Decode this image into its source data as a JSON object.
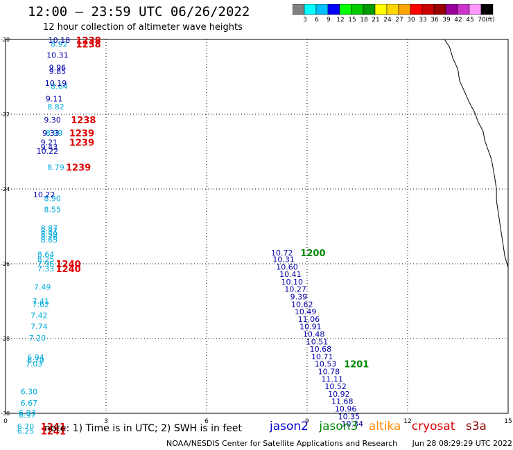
{
  "header": {
    "title": "12:00 – 23:59 UTC 06/26/2022",
    "subtitle": "12 hour collection of altimeter wave heights"
  },
  "colorbar": {
    "colors": [
      "#808080",
      "#00ffff",
      "#00bfff",
      "#0000ff",
      "#00ff00",
      "#00cc00",
      "#009900",
      "#ffff00",
      "#ffd700",
      "#ffa500",
      "#ff0000",
      "#cc0000",
      "#990000",
      "#990099",
      "#cc33cc",
      "#ff99ff",
      "#000000"
    ],
    "labels": [
      "3",
      "6",
      "9",
      "12",
      "15",
      "18",
      "21",
      "24",
      "27",
      "30",
      "33",
      "36",
      "39",
      "42",
      "45",
      "70"
    ],
    "unit": "(ft)"
  },
  "footer": {
    "note": "note:  1) Time is in UTC; 2) SWH is in feet",
    "credit": "NOAA/NESDIS Center for Satellite Applications and Research",
    "timestamp": "Jun 28 08:29:29 UTC 2022"
  },
  "legend": [
    {
      "name": "jason2",
      "color": "#0000cc"
    },
    {
      "name": "jason3",
      "color": "#008800"
    },
    {
      "name": "altika",
      "color": "#ff8800"
    },
    {
      "name": "cryosat",
      "color": "#dd0000"
    },
    {
      "name": "s3a",
      "color": "#880000"
    }
  ],
  "chart_data": {
    "type": "scatter",
    "xlim": [
      0,
      15
    ],
    "ylim": [
      -30,
      -20
    ],
    "x_ticks": [
      "0",
      "3",
      "6",
      "9",
      "12",
      "15"
    ],
    "y_ticks": [
      "-20",
      "-22",
      "-24",
      "-26",
      "-28",
      "-30"
    ],
    "grid": true,
    "series": [
      {
        "color": "#00aadd",
        "points": [
          {
            "x": 1.6,
            "y": -20.12,
            "label": "8.92"
          },
          {
            "x": 1.6,
            "y": -21.25,
            "label": "8.64"
          },
          {
            "x": 1.5,
            "y": -21.8,
            "label": "8.82"
          },
          {
            "x": 1.45,
            "y": -22.5,
            "label": "8.99"
          },
          {
            "x": 1.5,
            "y": -23.42,
            "label": "8.79"
          },
          {
            "x": 1.4,
            "y": -24.25,
            "label": "8.90"
          },
          {
            "x": 1.4,
            "y": -24.55,
            "label": "8.55"
          },
          {
            "x": 1.3,
            "y": -25.05,
            "label": "8.87"
          },
          {
            "x": 1.3,
            "y": -25.12,
            "label": "8.57"
          },
          {
            "x": 1.3,
            "y": -25.2,
            "label": "8.59"
          },
          {
            "x": 1.3,
            "y": -25.28,
            "label": "8.76"
          },
          {
            "x": 1.3,
            "y": -25.36,
            "label": "8.65"
          },
          {
            "x": 1.2,
            "y": -25.75,
            "label": "8.64"
          },
          {
            "x": 1.2,
            "y": -25.88,
            "label": "8.25"
          },
          {
            "x": 1.2,
            "y": -26.0,
            "label": "7.96"
          },
          {
            "x": 1.2,
            "y": -26.13,
            "label": "7.33"
          },
          {
            "x": 1.1,
            "y": -26.62,
            "label": "7.49"
          },
          {
            "x": 1.05,
            "y": -27.0,
            "label": "7.41"
          },
          {
            "x": 1.05,
            "y": -27.08,
            "label": "7.62"
          },
          {
            "x": 1.0,
            "y": -27.38,
            "label": "7.42"
          },
          {
            "x": 1.0,
            "y": -27.68,
            "label": "7.74"
          },
          {
            "x": 0.95,
            "y": -27.98,
            "label": "7.20"
          },
          {
            "x": 0.9,
            "y": -28.5,
            "label": "6.94"
          },
          {
            "x": 0.9,
            "y": -28.58,
            "label": "6.79"
          },
          {
            "x": 0.85,
            "y": -28.68,
            "label": "7.03"
          },
          {
            "x": 0.7,
            "y": -29.42,
            "label": "6.30"
          },
          {
            "x": 0.7,
            "y": -29.72,
            "label": "6.67"
          },
          {
            "x": 0.65,
            "y": -29.98,
            "label": "6.93"
          },
          {
            "x": 0.65,
            "y": -30.05,
            "label": "6.97"
          },
          {
            "x": 0.6,
            "y": -30.35,
            "label": "6.70"
          },
          {
            "x": 0.6,
            "y": -30.47,
            "label": "6.25"
          }
        ]
      },
      {
        "color": "#0000aa",
        "points": [
          {
            "x": 1.6,
            "y": -20.02,
            "label": "10.18"
          },
          {
            "x": 1.55,
            "y": -20.42,
            "label": "10.31"
          },
          {
            "x": 1.55,
            "y": -20.75,
            "label": "9.96"
          },
          {
            "x": 1.55,
            "y": -20.85,
            "label": "9.85"
          },
          {
            "x": 1.5,
            "y": -21.17,
            "label": "10.19"
          },
          {
            "x": 1.45,
            "y": -21.58,
            "label": "9.11"
          },
          {
            "x": 1.4,
            "y": -22.15,
            "label": "9.30"
          },
          {
            "x": 1.35,
            "y": -22.5,
            "label": "9.33"
          },
          {
            "x": 1.3,
            "y": -22.75,
            "label": "9.21"
          },
          {
            "x": 1.3,
            "y": -22.88,
            "label": "9.43"
          },
          {
            "x": 1.25,
            "y": -22.98,
            "label": "10.22"
          },
          {
            "x": 1.15,
            "y": -24.15,
            "label": "10.22"
          },
          {
            "x": 8.25,
            "y": -25.7,
            "label": "10.72"
          },
          {
            "x": 8.3,
            "y": -25.88,
            "label": "10.31"
          },
          {
            "x": 8.4,
            "y": -26.08,
            "label": "10.60"
          },
          {
            "x": 8.5,
            "y": -26.28,
            "label": "10.41"
          },
          {
            "x": 8.55,
            "y": -26.48,
            "label": "10.10"
          },
          {
            "x": 8.65,
            "y": -26.68,
            "label": "10.27"
          },
          {
            "x": 8.75,
            "y": -26.88,
            "label": "9.39"
          },
          {
            "x": 8.85,
            "y": -27.08,
            "label": "10.62"
          },
          {
            "x": 8.95,
            "y": -27.28,
            "label": "10.49"
          },
          {
            "x": 9.05,
            "y": -27.48,
            "label": "11.06"
          },
          {
            "x": 9.1,
            "y": -27.68,
            "label": "10.91"
          },
          {
            "x": 9.2,
            "y": -27.88,
            "label": "10.48"
          },
          {
            "x": 9.3,
            "y": -28.08,
            "label": "10.51"
          },
          {
            "x": 9.4,
            "y": -28.28,
            "label": "10.68"
          },
          {
            "x": 9.45,
            "y": -28.48,
            "label": "10.71"
          },
          {
            "x": 9.55,
            "y": -28.68,
            "label": "10.53"
          },
          {
            "x": 9.65,
            "y": -28.88,
            "label": "10.78"
          },
          {
            "x": 9.75,
            "y": -29.08,
            "label": "11.11"
          },
          {
            "x": 9.85,
            "y": -29.28,
            "label": "10.52"
          },
          {
            "x": 9.95,
            "y": -29.48,
            "label": "10.92"
          },
          {
            "x": 10.05,
            "y": -29.68,
            "label": "11.68"
          },
          {
            "x": 10.15,
            "y": -29.88,
            "label": "10.96"
          },
          {
            "x": 10.25,
            "y": -30.08,
            "label": "10.35"
          },
          {
            "x": 10.35,
            "y": -30.28,
            "label": "10.34"
          }
        ]
      }
    ],
    "annotations": [
      {
        "x": 2.1,
        "y": -20.02,
        "text": "1238",
        "color": "#dd0000"
      },
      {
        "x": 2.1,
        "y": -20.12,
        "text": "1238",
        "color": "#dd0000"
      },
      {
        "x": 1.95,
        "y": -22.15,
        "text": "1238",
        "color": "#dd0000"
      },
      {
        "x": 1.9,
        "y": -22.5,
        "text": "1239",
        "color": "#dd0000"
      },
      {
        "x": 1.9,
        "y": -22.75,
        "text": "1239",
        "color": "#dd0000"
      },
      {
        "x": 1.8,
        "y": -23.42,
        "text": "1239",
        "color": "#dd0000"
      },
      {
        "x": 1.5,
        "y": -26.0,
        "text": "1240",
        "color": "#dd0000"
      },
      {
        "x": 1.5,
        "y": -26.13,
        "text": "1240",
        "color": "#dd0000"
      },
      {
        "x": 1.05,
        "y": -30.35,
        "text": "1241",
        "color": "#dd0000"
      },
      {
        "x": 1.05,
        "y": -30.47,
        "text": "1241",
        "color": "#dd0000"
      },
      {
        "x": 8.8,
        "y": -25.7,
        "text": "1200",
        "color": "#008800"
      },
      {
        "x": 10.1,
        "y": -28.68,
        "text": "1201",
        "color": "#008800"
      }
    ],
    "coastline": [
      [
        13.1,
        -20.0
      ],
      [
        13.25,
        -20.2
      ],
      [
        13.35,
        -20.5
      ],
      [
        13.5,
        -20.8
      ],
      [
        13.55,
        -21.1
      ],
      [
        13.7,
        -21.4
      ],
      [
        13.85,
        -21.7
      ],
      [
        14.0,
        -21.95
      ],
      [
        14.1,
        -22.2
      ],
      [
        14.25,
        -22.45
      ],
      [
        14.3,
        -22.7
      ],
      [
        14.4,
        -22.95
      ],
      [
        14.5,
        -23.2
      ],
      [
        14.55,
        -23.45
      ],
      [
        14.6,
        -23.7
      ],
      [
        14.65,
        -24.0
      ],
      [
        14.65,
        -24.3
      ],
      [
        14.7,
        -24.6
      ],
      [
        14.75,
        -24.9
      ],
      [
        14.8,
        -25.2
      ],
      [
        14.85,
        -25.5
      ],
      [
        14.9,
        -25.8
      ],
      [
        15.0,
        -26.1
      ],
      [
        15.0,
        -26.4
      ]
    ]
  }
}
